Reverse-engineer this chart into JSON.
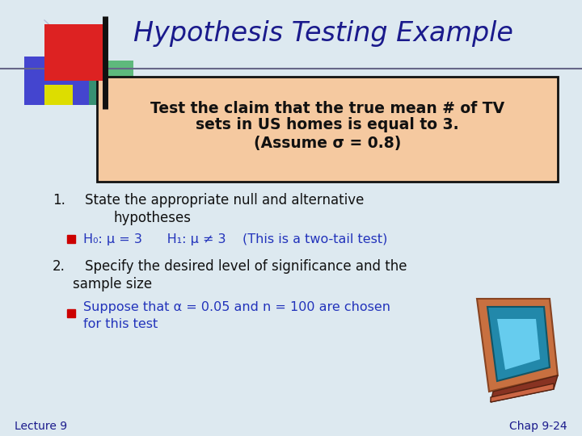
{
  "title": "Hypothesis Testing Example",
  "title_color": "#1a1a8c",
  "title_fontsize": 24,
  "background_color": "#dde9f0",
  "box_text_line1": "Test the claim that the true mean # of TV",
  "box_text_line2": "sets in US homes is equal to 3.",
  "box_text_line3": "(Assume σ = 0.8)",
  "box_bg_color": "#f5c9a0",
  "box_border_color": "#111111",
  "item1_line1": "State the appropriate null and alternative",
  "item1_line2": "hypotheses",
  "item1_sub": "H₀: μ = 3      H₁: μ ≠ 3    (This is a two-tail test)",
  "item2_line1": "Specify the desired level of significance and the",
  "item2_line2": "sample size",
  "item2_sub1": "Suppose that α = 0.05 and n = 100 are chosen",
  "item2_sub2": "for this test",
  "bullet_color": "#cc0000",
  "text_color": "#111111",
  "blue_text_color": "#2233bb",
  "footer_left": "Lecture 9",
  "footer_right": "Chap 9-24",
  "footer_color": "#1a1a8c",
  "footer_fontsize": 10
}
